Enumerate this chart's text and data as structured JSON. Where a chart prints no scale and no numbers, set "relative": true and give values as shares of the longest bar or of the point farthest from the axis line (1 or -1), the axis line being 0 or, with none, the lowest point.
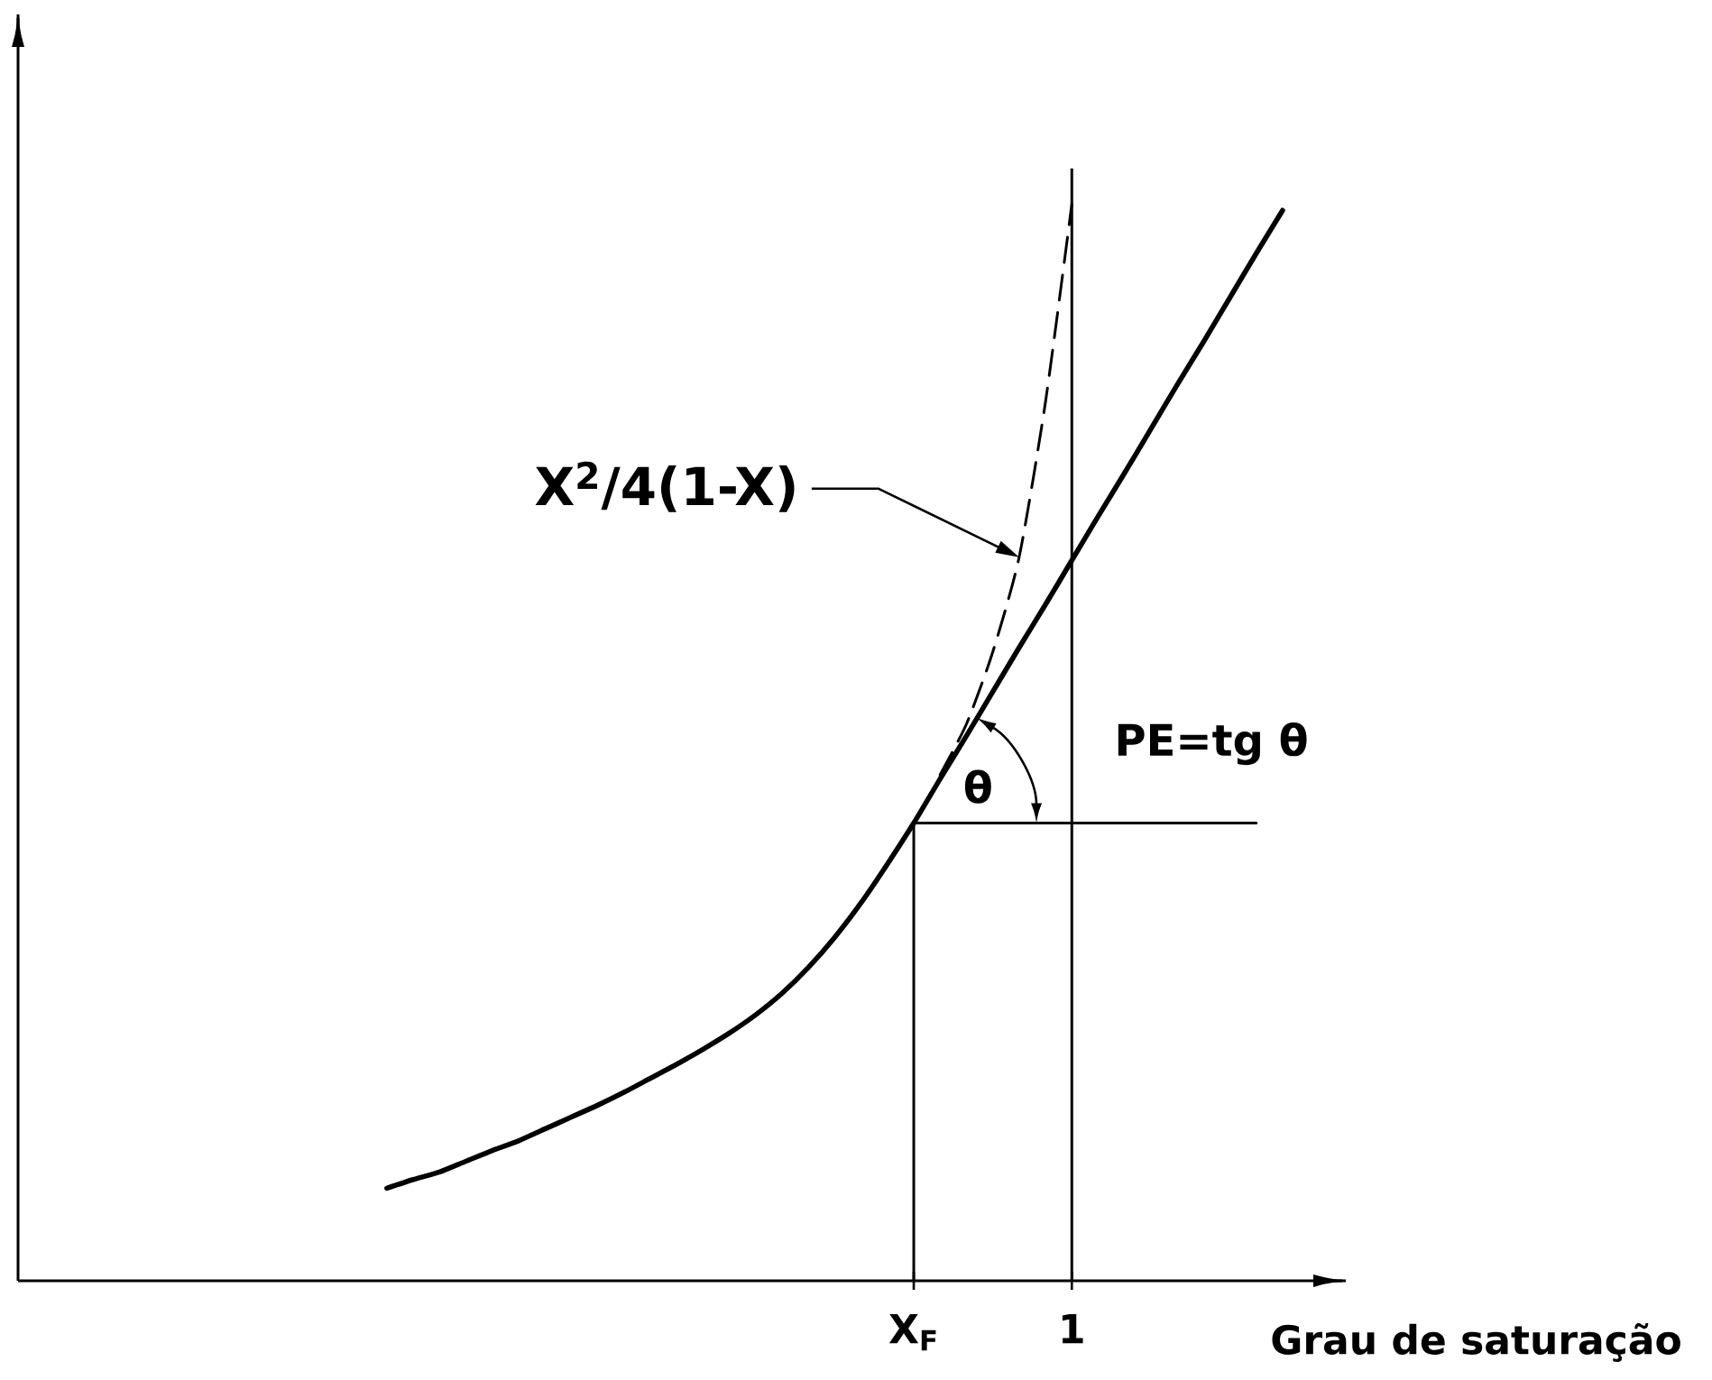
{
  "chart_data": {
    "type": "line",
    "xlabel": "Grau de saturação",
    "relative": true,
    "tick_labels": "x",
    "categories": [
      null,
      null,
      null,
      null,
      null,
      null,
      null,
      null,
      null,
      null,
      null,
      null,
      null,
      null,
      null,
      null,
      null,
      null,
      null,
      null,
      null,
      null,
      null,
      null,
      null,
      null,
      null,
      null,
      null,
      null,
      null,
      null,
      null,
      null,
      "X$_{F}$",
      null,
      null,
      null,
      null,
      null,
      "1",
      null,
      null,
      null,
      null,
      null,
      null,
      null,
      null,
      null,
      null
    ],
    "series": [
      {
        "color": "#000000",
        "values": [
          null,
          null,
          null,
          null,
          null,
          null,
          null,
          null,
          null,
          null,
          null,
          null,
          null,
          null,
          0.086,
          0.094,
          0.101,
          0.111,
          0.121,
          0.13,
          0.141,
          0.152,
          0.163,
          0.175,
          0.188,
          0.201,
          0.215,
          0.23,
          0.247,
          0.267,
          0.291,
          0.319,
          0.351,
          0.387,
          0.425,
          0.466,
          0.506,
          0.547,
          0.588,
          0.628,
          0.669,
          0.71,
          0.75,
          0.791,
          0.832,
          0.872,
          0.913,
          0.954,
          0.994,
          null,
          null
        ]
      },
      {
        "name": "X$^{2}$/4(1-X)",
        "color": "#000000",
        "line_style": "dashed",
        "values": [
          null,
          null,
          null,
          null,
          null,
          null,
          null,
          null,
          null,
          null,
          null,
          null,
          null,
          null,
          null,
          null,
          null,
          null,
          null,
          null,
          null,
          null,
          null,
          null,
          null,
          null,
          null,
          null,
          null,
          null,
          null,
          null,
          null,
          null,
          null,
          0.47,
          0.517,
          0.584,
          0.672,
          0.816,
          1.0,
          null,
          null,
          null,
          null,
          null,
          null,
          null,
          null,
          null,
          null
        ]
      },
      {
        "type": "step",
        "color": "#000000",
        "values": [
          null,
          null,
          null,
          null,
          null,
          null,
          null,
          null,
          null,
          null,
          null,
          null,
          null,
          null,
          null,
          null,
          null,
          null,
          null,
          null,
          null,
          null,
          null,
          null,
          null,
          null,
          null,
          null,
          null,
          null,
          null,
          null,
          null,
          null,
          0,
          0.425,
          0.425,
          0.425,
          0.425,
          0.425,
          0.425,
          0.425,
          0.425,
          0.425,
          0.425,
          0.425,
          0.425,
          0.425,
          null,
          null,
          null
        ]
      }
    ],
    "ref_lines": [
      {
        "axis": "x",
        "value": "1",
        "color": "#000000"
      }
    ],
    "annotations": [
      "θ",
      "PE=tg θ"
    ]
  }
}
